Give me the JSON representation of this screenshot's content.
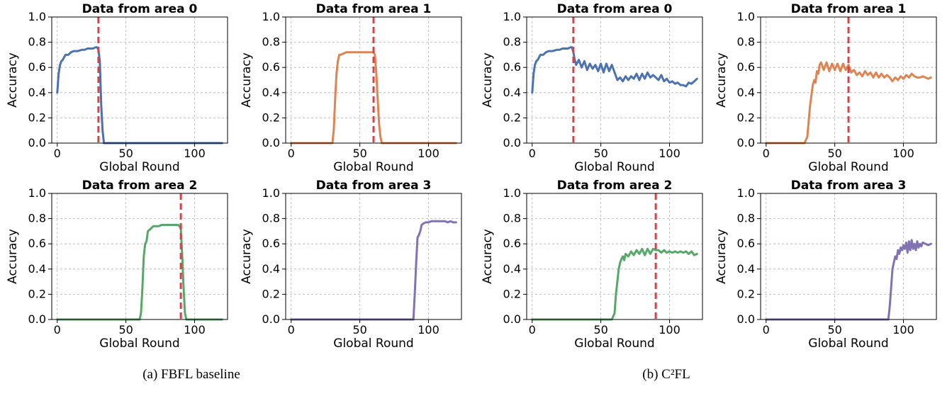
{
  "captions": {
    "a": "(a) FBFL baseline",
    "b": "(b) C²FL"
  },
  "colors": {
    "area0": "#4c72b0",
    "area1": "#dd8452",
    "area2": "#55a868",
    "area3": "#8172b3",
    "vline": "#d1444a",
    "grid": "#b0b0b0"
  },
  "chart_data": [
    {
      "type": "line",
      "title": "Data from area 0",
      "xlabel": "Global Round",
      "ylabel": "Accuracy",
      "xlim": [
        -4,
        124
      ],
      "ylim": [
        0,
        1
      ],
      "xticks": [
        0,
        50,
        100
      ],
      "yticks": [
        0.0,
        0.2,
        0.4,
        0.6,
        0.8,
        1.0
      ],
      "grid": true,
      "vline": 30,
      "color_key": "area0",
      "series": [
        {
          "x": [
            0,
            1,
            2,
            3,
            4,
            5,
            6,
            8,
            10,
            12,
            15,
            18,
            20,
            22,
            24,
            26,
            28,
            29,
            30,
            31,
            32,
            33,
            34,
            40,
            60,
            80,
            100,
            120
          ],
          "y": [
            0.4,
            0.55,
            0.62,
            0.65,
            0.66,
            0.68,
            0.7,
            0.7,
            0.72,
            0.73,
            0.73,
            0.74,
            0.74,
            0.75,
            0.75,
            0.75,
            0.76,
            0.76,
            0.74,
            0.65,
            0.3,
            0.1,
            0.0,
            0.0,
            0.0,
            0.0,
            0.0,
            0.0
          ]
        }
      ]
    },
    {
      "type": "line",
      "title": "Data from area 1",
      "xlabel": "Global Round",
      "ylabel": "Accuracy",
      "xlim": [
        -4,
        124
      ],
      "ylim": [
        0,
        1
      ],
      "xticks": [
        0,
        50,
        100
      ],
      "yticks": [
        0.0,
        0.2,
        0.4,
        0.6,
        0.8,
        1.0
      ],
      "grid": true,
      "vline": 60,
      "color_key": "area1",
      "series": [
        {
          "x": [
            0,
            30,
            31,
            32,
            33,
            34,
            35,
            36,
            38,
            40,
            45,
            50,
            55,
            58,
            60,
            61,
            62,
            63,
            64,
            65,
            66,
            80,
            100,
            120
          ],
          "y": [
            0.0,
            0.0,
            0.1,
            0.35,
            0.55,
            0.65,
            0.7,
            0.7,
            0.71,
            0.72,
            0.72,
            0.72,
            0.72,
            0.72,
            0.72,
            0.7,
            0.55,
            0.35,
            0.15,
            0.05,
            0.0,
            0.0,
            0.0,
            0.0
          ]
        }
      ]
    },
    {
      "type": "line",
      "title": "Data from area 0",
      "xlabel": "Global Round",
      "ylabel": "Accuracy",
      "xlim": [
        -4,
        124
      ],
      "ylim": [
        0,
        1
      ],
      "xticks": [
        0,
        50,
        100
      ],
      "yticks": [
        0.0,
        0.2,
        0.4,
        0.6,
        0.8,
        1.0
      ],
      "grid": true,
      "vline": 30,
      "color_key": "area0",
      "series": [
        {
          "x": [
            0,
            1,
            2,
            3,
            4,
            5,
            6,
            8,
            10,
            12,
            15,
            18,
            20,
            22,
            24,
            26,
            28,
            29,
            30,
            31,
            32,
            34,
            36,
            38,
            40,
            42,
            44,
            46,
            48,
            50,
            52,
            54,
            56,
            58,
            60,
            62,
            64,
            66,
            68,
            70,
            72,
            74,
            76,
            78,
            80,
            82,
            84,
            86,
            88,
            90,
            92,
            94,
            96,
            98,
            100,
            102,
            104,
            106,
            108,
            110,
            112,
            114,
            116,
            118,
            120
          ],
          "y": [
            0.4,
            0.55,
            0.62,
            0.65,
            0.66,
            0.68,
            0.7,
            0.7,
            0.72,
            0.73,
            0.73,
            0.74,
            0.74,
            0.75,
            0.75,
            0.75,
            0.76,
            0.76,
            0.72,
            0.66,
            0.62,
            0.66,
            0.6,
            0.65,
            0.58,
            0.63,
            0.59,
            0.62,
            0.57,
            0.63,
            0.56,
            0.63,
            0.57,
            0.62,
            0.56,
            0.5,
            0.52,
            0.49,
            0.53,
            0.5,
            0.53,
            0.51,
            0.55,
            0.5,
            0.55,
            0.51,
            0.56,
            0.52,
            0.54,
            0.52,
            0.5,
            0.54,
            0.49,
            0.51,
            0.48,
            0.49,
            0.47,
            0.48,
            0.46,
            0.46,
            0.45,
            0.48,
            0.47,
            0.49,
            0.51
          ]
        }
      ]
    },
    {
      "type": "line",
      "title": "Data from area 1",
      "xlabel": "Global Round",
      "ylabel": "Accuracy",
      "xlim": [
        -4,
        124
      ],
      "ylim": [
        0,
        1
      ],
      "xticks": [
        0,
        50,
        100
      ],
      "yticks": [
        0.0,
        0.2,
        0.4,
        0.6,
        0.8,
        1.0
      ],
      "grid": true,
      "vline": 60,
      "color_key": "area1",
      "series": [
        {
          "x": [
            0,
            28,
            30,
            32,
            34,
            35,
            36,
            37,
            38,
            39,
            40,
            42,
            44,
            46,
            48,
            50,
            52,
            54,
            56,
            58,
            60,
            62,
            64,
            66,
            68,
            70,
            72,
            74,
            76,
            78,
            80,
            82,
            84,
            86,
            88,
            90,
            92,
            94,
            96,
            98,
            100,
            102,
            104,
            106,
            108,
            110,
            112,
            114,
            116,
            118,
            120
          ],
          "y": [
            0.0,
            0.0,
            0.05,
            0.3,
            0.46,
            0.5,
            0.48,
            0.57,
            0.55,
            0.62,
            0.64,
            0.58,
            0.64,
            0.57,
            0.63,
            0.58,
            0.63,
            0.57,
            0.63,
            0.58,
            0.62,
            0.56,
            0.58,
            0.54,
            0.56,
            0.53,
            0.57,
            0.54,
            0.56,
            0.52,
            0.56,
            0.52,
            0.55,
            0.52,
            0.54,
            0.52,
            0.49,
            0.52,
            0.5,
            0.53,
            0.51,
            0.54,
            0.52,
            0.55,
            0.53,
            0.52,
            0.52,
            0.53,
            0.52,
            0.51,
            0.52
          ]
        }
      ]
    },
    {
      "type": "line",
      "title": "Data from area 2",
      "xlabel": "Global Round",
      "ylabel": "Accuracy",
      "xlim": [
        -4,
        124
      ],
      "ylim": [
        0,
        1
      ],
      "xticks": [
        0,
        50,
        100
      ],
      "yticks": [
        0.0,
        0.2,
        0.4,
        0.6,
        0.8,
        1.0
      ],
      "grid": true,
      "vline": 90,
      "color_key": "area2",
      "series": [
        {
          "x": [
            0,
            60,
            61,
            62,
            63,
            64,
            65,
            66,
            67,
            68,
            70,
            72,
            74,
            76,
            78,
            80,
            82,
            84,
            86,
            88,
            89,
            90,
            91,
            92,
            93,
            94,
            96,
            100,
            120
          ],
          "y": [
            0.0,
            0.0,
            0.05,
            0.25,
            0.5,
            0.6,
            0.62,
            0.7,
            0.71,
            0.72,
            0.74,
            0.74,
            0.74,
            0.75,
            0.75,
            0.75,
            0.75,
            0.75,
            0.75,
            0.75,
            0.74,
            0.72,
            0.5,
            0.25,
            0.05,
            0.0,
            0.0,
            0.0,
            0.0
          ]
        }
      ]
    },
    {
      "type": "line",
      "title": "Data from area 3",
      "xlabel": "Global Round",
      "ylabel": "Accuracy",
      "xlim": [
        -4,
        124
      ],
      "ylim": [
        0,
        1
      ],
      "xticks": [
        0,
        50,
        100
      ],
      "yticks": [
        0.0,
        0.2,
        0.4,
        0.6,
        0.8,
        1.0
      ],
      "grid": true,
      "vline": null,
      "color_key": "area3",
      "series": [
        {
          "x": [
            0,
            89,
            90,
            91,
            92,
            93,
            94,
            95,
            96,
            98,
            100,
            102,
            104,
            106,
            108,
            110,
            112,
            114,
            116,
            118,
            120
          ],
          "y": [
            0.0,
            0.0,
            0.2,
            0.45,
            0.65,
            0.67,
            0.7,
            0.75,
            0.76,
            0.77,
            0.77,
            0.78,
            0.78,
            0.78,
            0.78,
            0.78,
            0.78,
            0.77,
            0.78,
            0.77,
            0.77
          ]
        }
      ]
    },
    {
      "type": "line",
      "title": "Data from area 2",
      "xlabel": "Global Round",
      "ylabel": "Accuracy",
      "xlim": [
        -4,
        124
      ],
      "ylim": [
        0,
        1
      ],
      "xticks": [
        0,
        50,
        100
      ],
      "yticks": [
        0.0,
        0.2,
        0.4,
        0.6,
        0.8,
        1.0
      ],
      "grid": true,
      "vline": 90,
      "color_key": "area2",
      "series": [
        {
          "x": [
            0,
            58,
            60,
            61,
            62,
            63,
            64,
            65,
            66,
            67,
            68,
            70,
            72,
            74,
            76,
            78,
            80,
            82,
            84,
            86,
            88,
            90,
            92,
            94,
            96,
            98,
            100,
            102,
            104,
            106,
            108,
            110,
            112,
            114,
            116,
            118,
            120
          ],
          "y": [
            0.0,
            0.0,
            0.05,
            0.2,
            0.3,
            0.4,
            0.45,
            0.48,
            0.5,
            0.47,
            0.52,
            0.5,
            0.54,
            0.51,
            0.55,
            0.52,
            0.56,
            0.51,
            0.56,
            0.52,
            0.56,
            0.55,
            0.55,
            0.53,
            0.55,
            0.53,
            0.54,
            0.53,
            0.54,
            0.53,
            0.54,
            0.53,
            0.54,
            0.52,
            0.54,
            0.51,
            0.52
          ]
        }
      ]
    },
    {
      "type": "line",
      "title": "Data from area 3",
      "xlabel": "Global Round",
      "ylabel": "Accuracy",
      "xlim": [
        -4,
        124
      ],
      "ylim": [
        0,
        1
      ],
      "xticks": [
        0,
        50,
        100
      ],
      "yticks": [
        0.0,
        0.2,
        0.4,
        0.6,
        0.8,
        1.0
      ],
      "grid": true,
      "vline": null,
      "color_key": "area3",
      "series": [
        {
          "x": [
            0,
            89,
            90,
            91,
            92,
            93,
            94,
            95,
            96,
            97,
            98,
            99,
            100,
            101,
            102,
            103,
            104,
            105,
            106,
            107,
            108,
            109,
            110,
            111,
            112,
            113,
            114,
            116,
            118,
            120
          ],
          "y": [
            0.0,
            0.0,
            0.1,
            0.25,
            0.4,
            0.45,
            0.5,
            0.48,
            0.55,
            0.52,
            0.57,
            0.55,
            0.59,
            0.56,
            0.61,
            0.53,
            0.62,
            0.55,
            0.63,
            0.56,
            0.6,
            0.55,
            0.62,
            0.57,
            0.6,
            0.58,
            0.61,
            0.6,
            0.59,
            0.6
          ]
        }
      ]
    }
  ]
}
